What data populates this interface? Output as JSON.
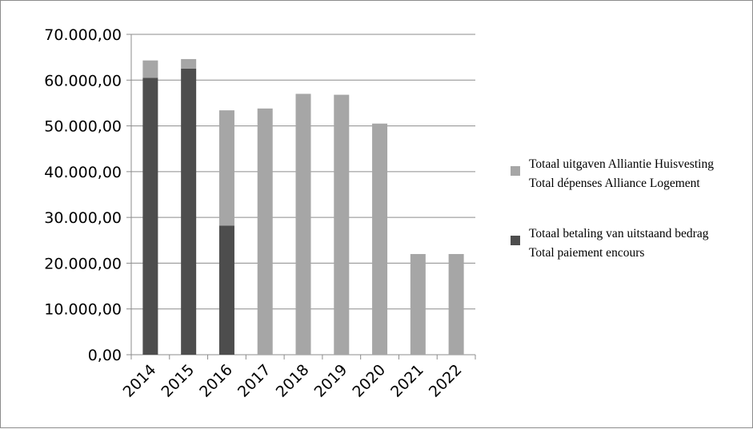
{
  "chart_data": {
    "type": "bar",
    "stacked": true,
    "categories": [
      "2014",
      "2015",
      "2016",
      "2017",
      "2018",
      "2019",
      "2020",
      "2021",
      "2022"
    ],
    "series": [
      {
        "name": "Totaal betaling van uitstaand bedrag Total paiement encours",
        "color": "#4d4d4d",
        "values": [
          60500,
          62500,
          28200,
          0,
          0,
          0,
          0,
          0,
          0
        ]
      },
      {
        "name": "Totaal uitgaven Alliantie Huisvesting Total dépenses Alliance Logement",
        "color": "#a6a6a6",
        "values": [
          3800,
          2100,
          25200,
          53800,
          57000,
          56800,
          50500,
          22000,
          22000
        ]
      }
    ],
    "ylim": [
      0,
      70000
    ],
    "y_ticks": [
      "0,00",
      "10.000,00",
      "20.000,00",
      "30.000,00",
      "40.000,00",
      "50.000,00",
      "60.000,00",
      "70.000,00"
    ],
    "grid": true,
    "legend_position": "right",
    "legend": [
      {
        "line1": "Totaal uitgaven Alliantie Huisvesting",
        "line2": "Total dépenses Alliance Logement",
        "color": "#a6a6a6"
      },
      {
        "line1": "Totaal betaling van uitstaand bedrag",
        "line2": "Total paiement encours",
        "color": "#4d4d4d"
      }
    ]
  }
}
